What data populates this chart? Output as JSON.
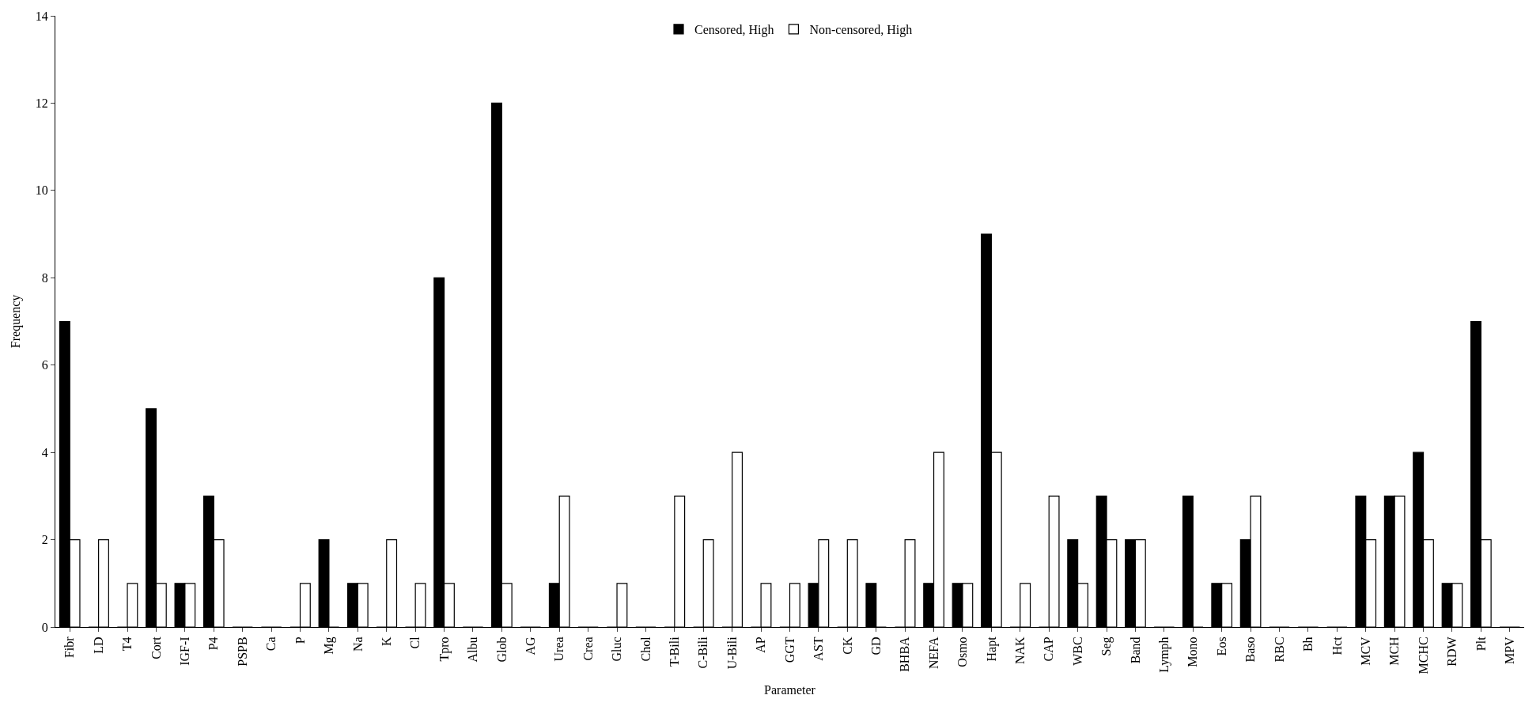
{
  "chart_data": {
    "type": "bar",
    "xlabel": "Parameter",
    "ylabel": "Frequency",
    "categories": [
      "Fibr",
      "LD",
      "T4",
      "Cort",
      "IGF-I",
      "P4",
      "PSPB",
      "Ca",
      "P",
      "Mg",
      "Na",
      "K",
      "Cl",
      "Tpro",
      "Albu",
      "Glob",
      "AG",
      "Urea",
      "Crea",
      "Gluc",
      "Chol",
      "T-Bili",
      "C-Bili",
      "U-Bili",
      "AP",
      "GGT",
      "AST",
      "CK",
      "GD",
      "BHBA",
      "NEFA",
      "Osmo",
      "Hapt",
      "NAK",
      "CAP",
      "WBC",
      "Seg",
      "Band",
      "Lymph",
      "Mono",
      "Eos",
      "Baso",
      "RBC",
      "Bh",
      "Hct",
      "MCV",
      "MCH",
      "MCHC",
      "RDW",
      "Plt",
      "MPV"
    ],
    "series": [
      {
        "name": "Censored, High",
        "color": "#000000",
        "values": [
          7,
          0,
          0,
          5,
          1,
          3,
          0,
          0,
          0,
          2,
          1,
          0,
          0,
          8,
          0,
          12,
          0,
          1,
          0,
          0,
          0,
          0,
          0,
          0,
          0,
          0,
          1,
          0,
          1,
          0,
          1,
          1,
          9,
          0,
          0,
          2,
          3,
          2,
          0,
          3,
          1,
          2,
          0,
          0,
          0,
          3,
          3,
          4,
          1,
          7,
          0
        ]
      },
      {
        "name": "Non-censored, High",
        "color": "#ffffff",
        "values": [
          2,
          2,
          1,
          1,
          1,
          2,
          0,
          0,
          1,
          0,
          1,
          2,
          1,
          1,
          0,
          1,
          0,
          3,
          0,
          1,
          0,
          3,
          2,
          4,
          1,
          1,
          2,
          2,
          0,
          2,
          4,
          1,
          4,
          1,
          3,
          1,
          2,
          2,
          0,
          0,
          1,
          3,
          0,
          0,
          0,
          2,
          3,
          2,
          1,
          2,
          0
        ]
      }
    ],
    "ylim": [
      0,
      14
    ],
    "yticks": [
      0,
      2,
      4,
      6,
      8,
      10,
      12,
      14
    ],
    "legend": "top"
  }
}
